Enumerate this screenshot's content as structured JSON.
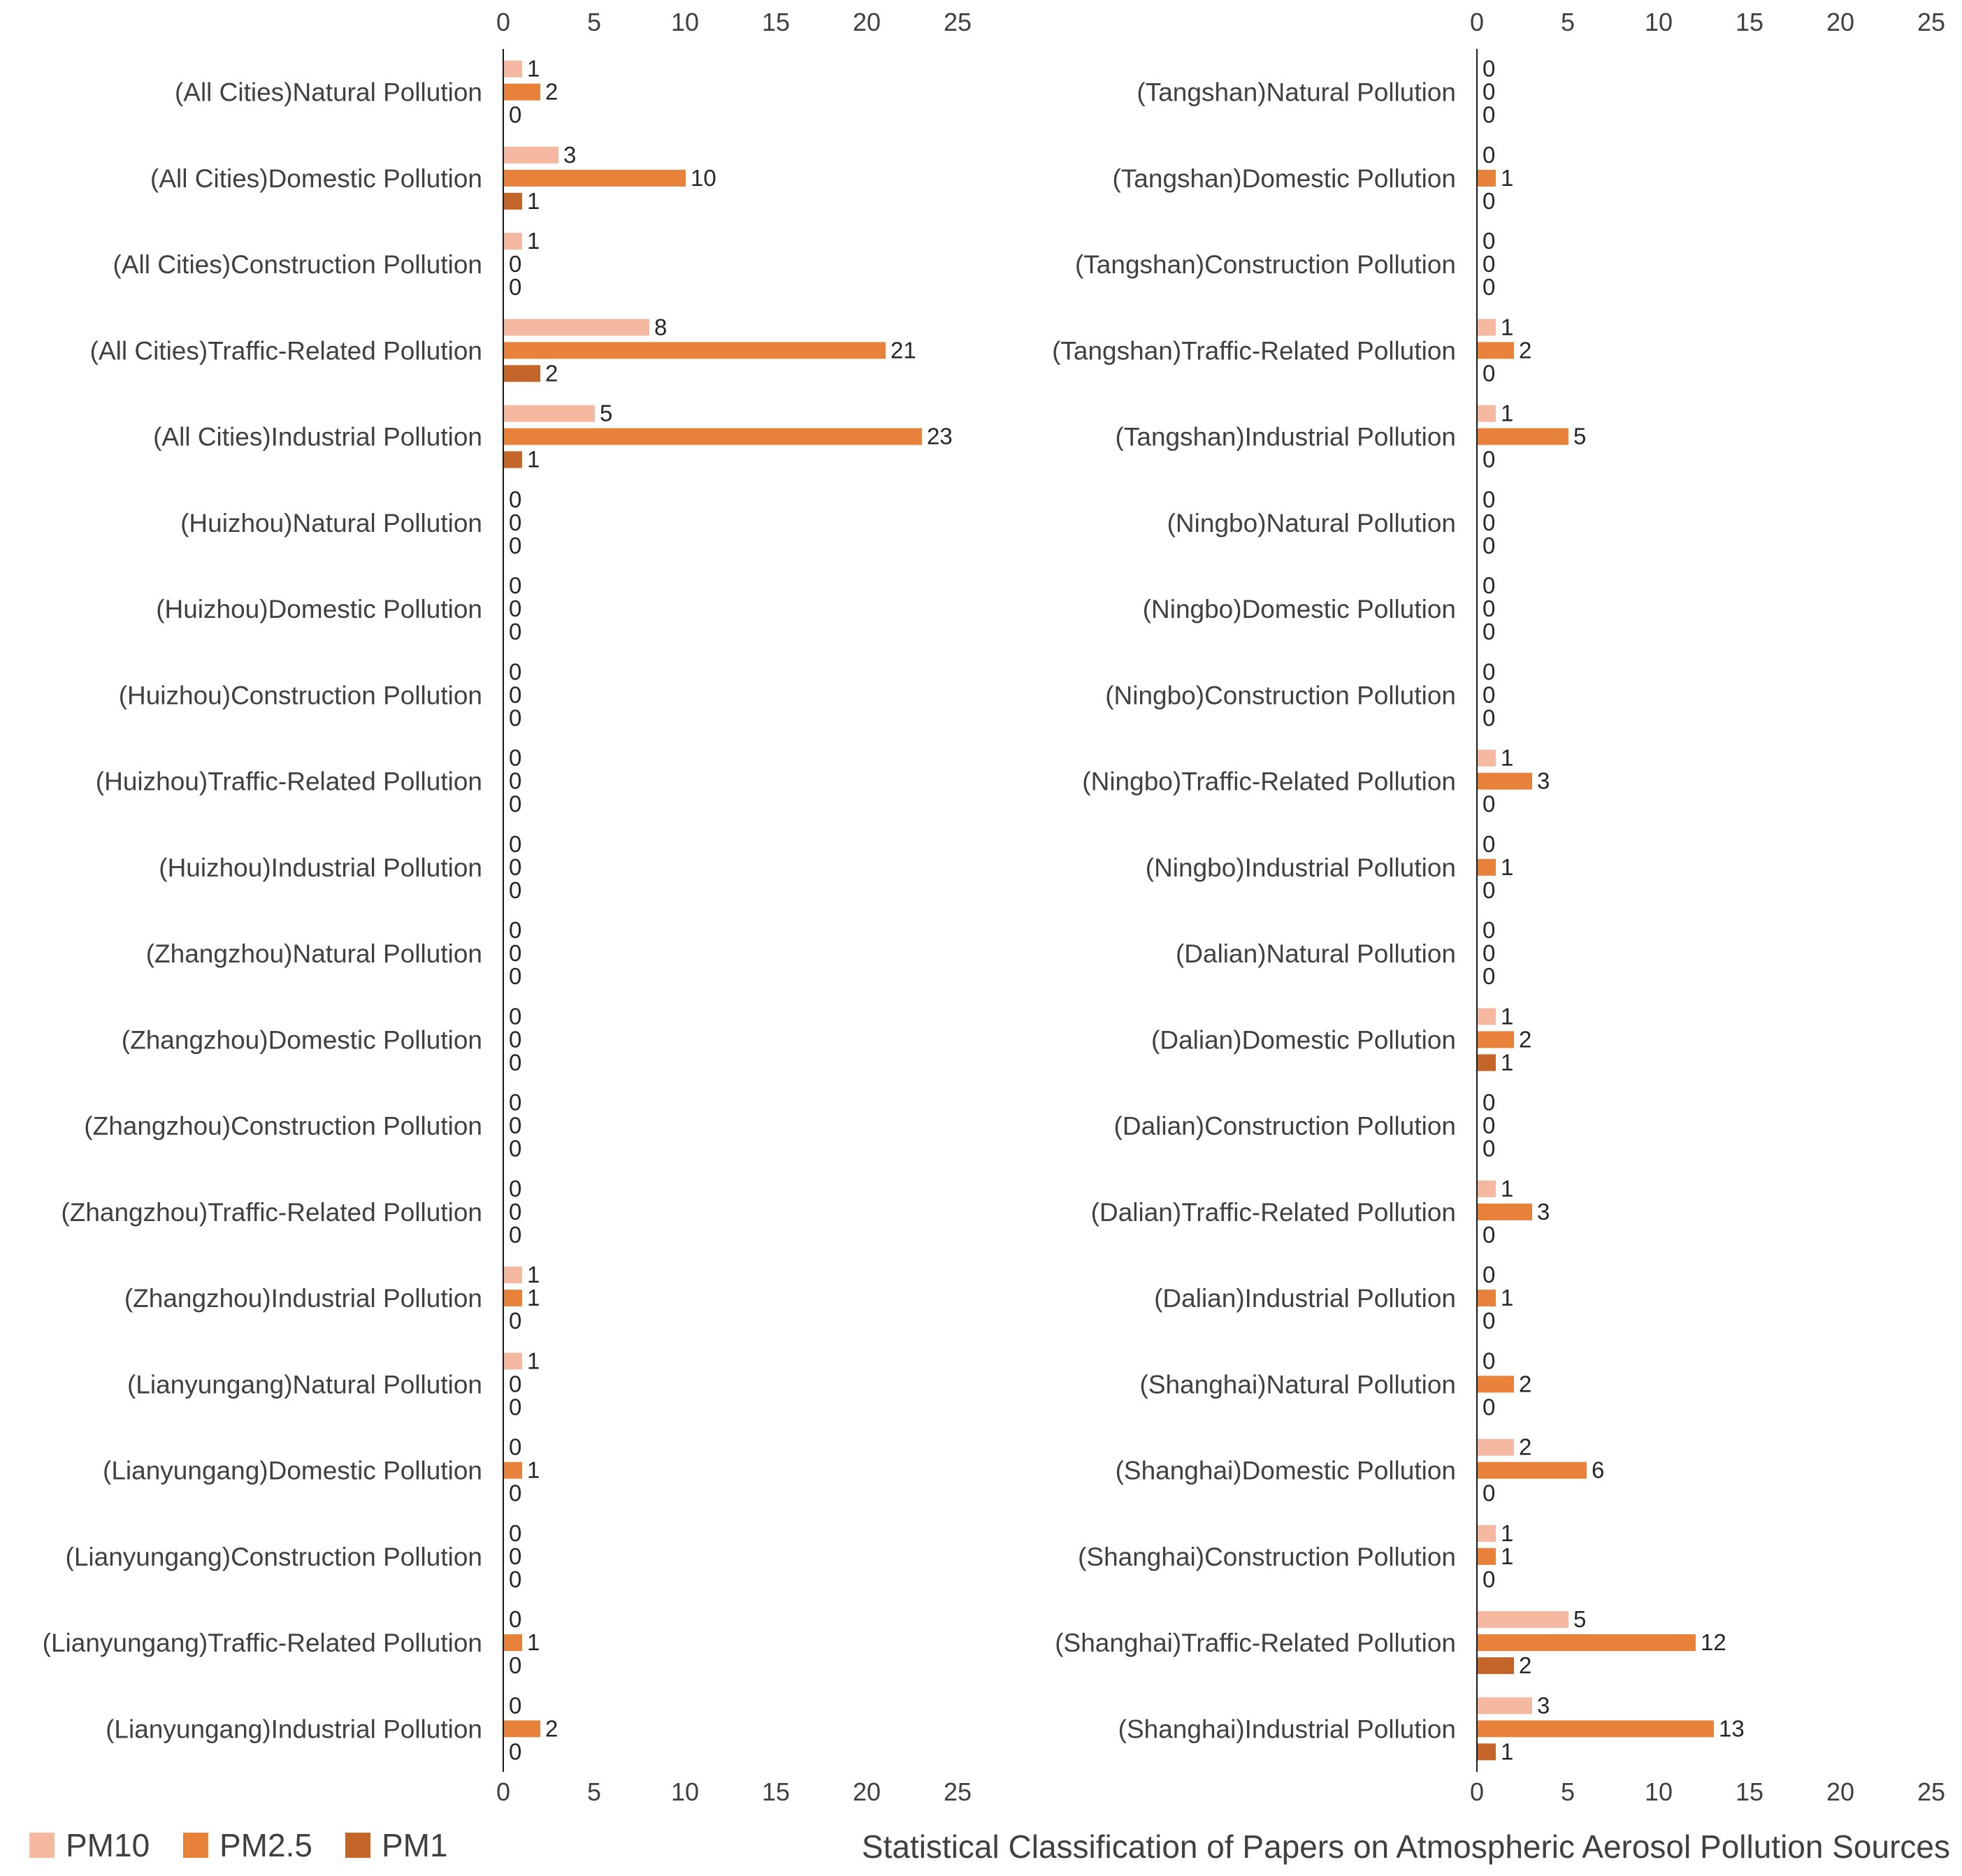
{
  "chart_data": {
    "type": "bar",
    "orientation": "horizontal",
    "title": "Statistical Classification of Papers on Atmospheric Aerosol Pollution Sources",
    "xlim": [
      0,
      25
    ],
    "xticks": [
      0,
      5,
      10,
      15,
      20,
      25
    ],
    "grid": false,
    "legend_position": "bottom-left",
    "series_colors": [
      "#F4B9A0",
      "#E8823A",
      "#C4652A"
    ],
    "axes_color": "#1a1a1a",
    "panels": [
      {
        "name": "left",
        "categories": [
          "(All Cities)Natural Pollution",
          "(All Cities)Domestic Pollution",
          "(All Cities)Construction Pollution",
          "(All Cities)Traffic-Related Pollution",
          "(All Cities)Industrial Pollution",
          "(Huizhou)Natural Pollution",
          "(Huizhou)Domestic Pollution",
          "(Huizhou)Construction Pollution",
          "(Huizhou)Traffic-Related Pollution",
          "(Huizhou)Industrial Pollution",
          "(Zhangzhou)Natural Pollution",
          "(Zhangzhou)Domestic Pollution",
          "(Zhangzhou)Construction Pollution",
          "(Zhangzhou)Traffic-Related Pollution",
          "(Zhangzhou)Industrial Pollution",
          "(Lianyungang)Natural Pollution",
          "(Lianyungang)Domestic Pollution",
          "(Lianyungang)Construction Pollution",
          "(Lianyungang)Traffic-Related Pollution",
          "(Lianyungang)Industrial Pollution"
        ],
        "series": [
          {
            "name": "PM10",
            "values": [
              1,
              3,
              1,
              8,
              5,
              0,
              0,
              0,
              0,
              0,
              0,
              0,
              0,
              0,
              1,
              1,
              0,
              0,
              0,
              0
            ]
          },
          {
            "name": "PM2.5",
            "values": [
              2,
              10,
              0,
              21,
              23,
              0,
              0,
              0,
              0,
              0,
              0,
              0,
              0,
              0,
              1,
              0,
              1,
              0,
              1,
              2
            ]
          },
          {
            "name": "PM1",
            "values": [
              0,
              1,
              0,
              2,
              1,
              0,
              0,
              0,
              0,
              0,
              0,
              0,
              0,
              0,
              0,
              0,
              0,
              0,
              0,
              0
            ]
          }
        ]
      },
      {
        "name": "right",
        "categories": [
          "(Tangshan)Natural Pollution",
          "(Tangshan)Domestic Pollution",
          "(Tangshan)Construction Pollution",
          "(Tangshan)Traffic-Related Pollution",
          "(Tangshan)Industrial Pollution",
          "(Ningbo)Natural Pollution",
          "(Ningbo)Domestic Pollution",
          "(Ningbo)Construction Pollution",
          "(Ningbo)Traffic-Related Pollution",
          "(Ningbo)Industrial Pollution",
          "(Dalian)Natural Pollution",
          "(Dalian)Domestic Pollution",
          "(Dalian)Construction Pollution",
          "(Dalian)Traffic-Related Pollution",
          "(Dalian)Industrial Pollution",
          "(Shanghai)Natural Pollution",
          "(Shanghai)Domestic Pollution",
          "(Shanghai)Construction Pollution",
          "(Shanghai)Traffic-Related Pollution",
          "(Shanghai)Industrial Pollution"
        ],
        "series": [
          {
            "name": "PM10",
            "values": [
              0,
              0,
              0,
              1,
              1,
              0,
              0,
              0,
              1,
              0,
              0,
              1,
              0,
              1,
              0,
              0,
              2,
              1,
              5,
              3
            ]
          },
          {
            "name": "PM2.5",
            "values": [
              0,
              1,
              0,
              2,
              5,
              0,
              0,
              0,
              3,
              1,
              0,
              2,
              0,
              3,
              1,
              2,
              6,
              1,
              12,
              13
            ]
          },
          {
            "name": "PM1",
            "values": [
              0,
              0,
              0,
              0,
              0,
              0,
              0,
              0,
              0,
              0,
              0,
              1,
              0,
              0,
              0,
              0,
              0,
              0,
              2,
              1
            ]
          }
        ]
      }
    ],
    "legend": [
      "PM10",
      "PM2.5",
      "PM1"
    ]
  }
}
